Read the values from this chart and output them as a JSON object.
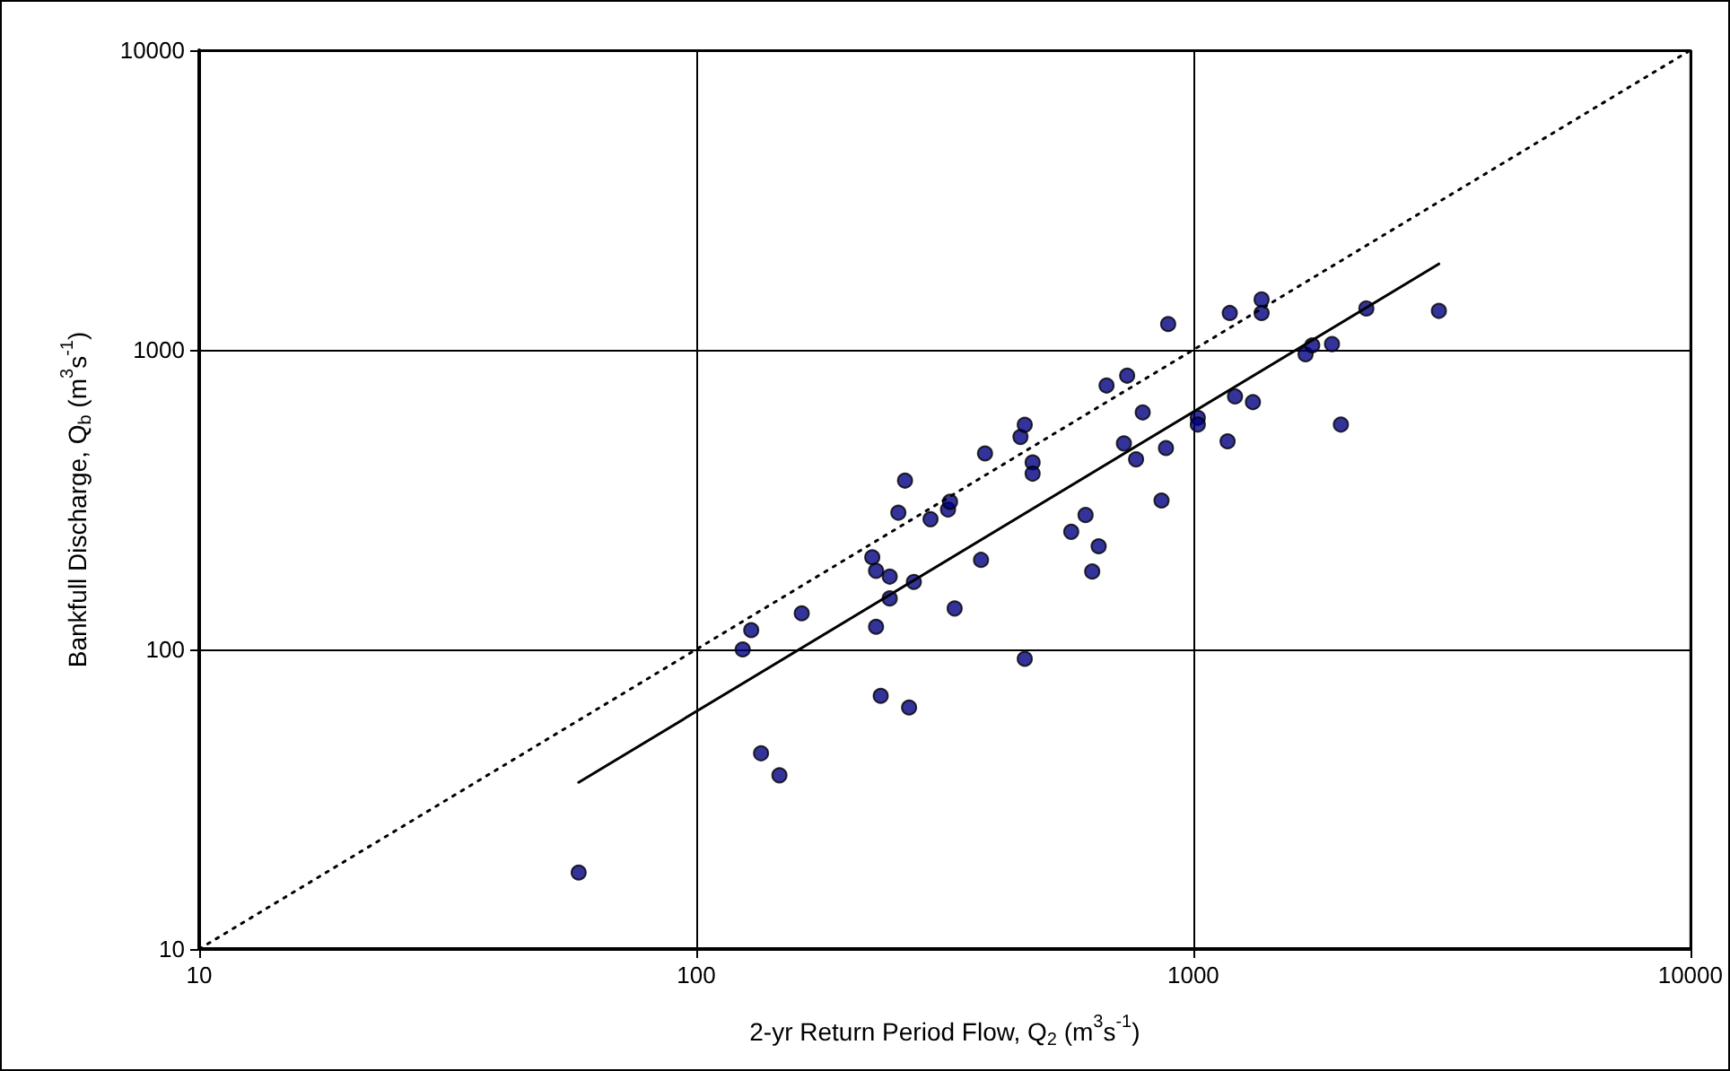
{
  "chart_data": {
    "type": "scatter",
    "xlabel": "2-yr Return Period Flow, Q$_{2}$ (m$^{3}$s$^{-1}$)",
    "ylabel": "Bankfull Discharge, Q$_{b}$ (m$^{3}$s$^{-1}$)",
    "log": "xy",
    "grid": true,
    "marker": "circle",
    "xlim": [
      10,
      10000
    ],
    "ylim": [
      10,
      10000
    ],
    "xticks": [
      10,
      100,
      1000,
      10000
    ],
    "yticks": [
      10,
      100,
      1000,
      10000
    ],
    "series": [
      {
        "color": "#000080",
        "x": [
          58,
          124,
          129,
          135,
          147,
          163,
          226,
          230,
          230,
          235,
          245,
          245,
          255,
          263,
          268,
          274,
          296,
          321,
          324,
          331,
          374,
          381,
          449,
          458,
          458,
          475,
          475,
          568,
          607,
          626,
          645,
          669,
          725,
          736,
          767,
          791,
          863,
          881,
          890,
          1021,
          1021,
          1172,
          1184,
          1213,
          1318,
          1372,
          1372,
          1682,
          1735,
          1901,
          1981,
          2229,
          3119
        ],
        "values": [
          18,
          100,
          116,
          45,
          38,
          132,
          203,
          183,
          119,
          70,
          175,
          148,
          286,
          366,
          64,
          168,
          272,
          293,
          311,
          137,
          199,
          451,
          512,
          562,
          93,
          421,
          386,
          247,
          281,
          182,
          221,
          760,
          487,
          820,
          431,
          618,
          314,
          470,
          1219,
          593,
          563,
          495,
          1327,
          699,
          669,
          1472,
          1327,
          966,
          1035,
          1045,
          563,
          1374,
          1349
        ]
      },
      {
        "type": "line",
        "color": "#000000",
        "marker": "none",
        "line_style": "solid",
        "x": [
          58,
          3119
        ],
        "values": [
          36,
          1936
        ]
      },
      {
        "type": "line",
        "color": "#000000",
        "marker": "none",
        "line_style": "dotted",
        "x": [
          10,
          10000
        ],
        "values": [
          10,
          10000
        ]
      }
    ]
  }
}
